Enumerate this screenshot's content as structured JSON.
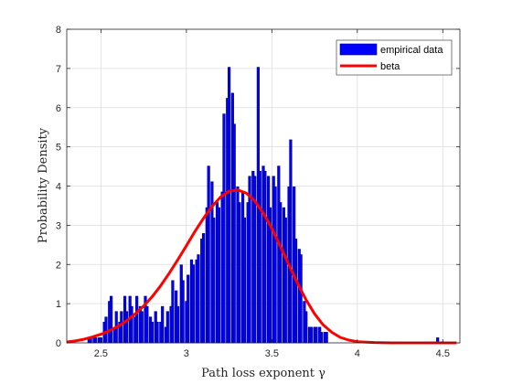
{
  "chart_data": {
    "type": "bar",
    "xlabel": "Path loss exponent γ",
    "ylabel": "Probability Density",
    "xlim": [
      2.3,
      4.6
    ],
    "ylim": [
      0,
      8
    ],
    "xticks": [
      2.5,
      3,
      3.5,
      4,
      4.5
    ],
    "yticks": [
      0,
      1,
      2,
      3,
      4,
      5,
      6,
      7,
      8
    ],
    "grid": true,
    "legend": {
      "placement": "top-right"
    },
    "bar_color": "#0000ff",
    "bar_edge_color": "#000080",
    "line_color": "#ff0000",
    "bar_width": 0.0138,
    "series": [
      {
        "name": "empirical data",
        "type": "bar",
        "x": [
          2.43,
          2.44,
          2.46,
          2.47,
          2.49,
          2.5,
          2.52,
          2.53,
          2.55,
          2.56,
          2.58,
          2.59,
          2.61,
          2.62,
          2.64,
          2.65,
          2.67,
          2.68,
          2.7,
          2.71,
          2.73,
          2.74,
          2.76,
          2.77,
          2.79,
          2.8,
          2.82,
          2.83,
          2.85,
          2.86,
          2.88,
          2.89,
          2.91,
          2.92,
          2.94,
          2.95,
          2.97,
          2.98,
          3.0,
          3.01,
          3.03,
          3.04,
          3.06,
          3.07,
          3.09,
          3.1,
          3.12,
          3.13,
          3.15,
          3.16,
          3.18,
          3.19,
          3.21,
          3.22,
          3.24,
          3.25,
          3.27,
          3.28,
          3.3,
          3.31,
          3.33,
          3.34,
          3.36,
          3.37,
          3.39,
          3.4,
          3.42,
          3.43,
          3.45,
          3.46,
          3.48,
          3.49,
          3.51,
          3.52,
          3.54,
          3.55,
          3.57,
          3.58,
          3.6,
          3.61,
          3.63,
          3.64,
          3.66,
          3.67,
          3.69,
          3.7,
          3.72,
          3.73,
          3.75,
          3.76,
          3.78,
          3.79,
          3.81,
          3.82,
          4.47
        ],
        "values": [
          0.13,
          0.13,
          0.13,
          0.13,
          0.13,
          0.13,
          0.53,
          0.66,
          1.06,
          1.19,
          0.4,
          0.8,
          0.53,
          0.8,
          1.19,
          0.8,
          1.19,
          0.93,
          0.66,
          1.19,
          0.93,
          0.8,
          1.19,
          0.93,
          0.66,
          0.53,
          0.8,
          0.53,
          0.53,
          0.93,
          0.4,
          0.8,
          0.93,
          1.59,
          1.33,
          0.93,
          1.99,
          1.59,
          1.06,
          1.73,
          2.12,
          1.99,
          2.12,
          2.25,
          2.65,
          2.79,
          3.45,
          4.51,
          4.11,
          3.19,
          3.58,
          3.45,
          3.85,
          5.84,
          6.24,
          7.03,
          6.37,
          5.58,
          3.98,
          3.58,
          3.85,
          3.19,
          3.58,
          4.25,
          4.38,
          4.25,
          7.03,
          4.38,
          4.51,
          4.38,
          4.25,
          3.45,
          4.25,
          3.98,
          4.51,
          3.58,
          3.45,
          3.19,
          3.98,
          5.18,
          3.98,
          2.65,
          2.39,
          2.25,
          1.06,
          0.8,
          0.4,
          0.4,
          0.4,
          0.4,
          0.4,
          0.27,
          0.27,
          0.27,
          0.13
        ]
      },
      {
        "name": "beta",
        "type": "line",
        "x": [
          2.3,
          2.35,
          2.4,
          2.45,
          2.5,
          2.55,
          2.6,
          2.65,
          2.7,
          2.75,
          2.8,
          2.85,
          2.9,
          2.95,
          3.0,
          3.05,
          3.1,
          3.15,
          3.2,
          3.25,
          3.3,
          3.35,
          3.4,
          3.45,
          3.5,
          3.55,
          3.6,
          3.65,
          3.7,
          3.75,
          3.8,
          3.85,
          3.9,
          3.95,
          4.0,
          4.1,
          4.2,
          4.3,
          4.4,
          4.5,
          4.58
        ],
        "values": [
          0.02,
          0.05,
          0.09,
          0.15,
          0.22,
          0.31,
          0.42,
          0.56,
          0.74,
          0.94,
          1.18,
          1.46,
          1.78,
          2.12,
          2.48,
          2.84,
          3.18,
          3.48,
          3.72,
          3.87,
          3.9,
          3.82,
          3.62,
          3.31,
          2.92,
          2.46,
          1.99,
          1.52,
          1.1,
          0.74,
          0.46,
          0.27,
          0.14,
          0.07,
          0.03,
          0.01,
          0.0,
          0.0,
          0.0,
          0.0,
          0.0
        ]
      }
    ]
  }
}
